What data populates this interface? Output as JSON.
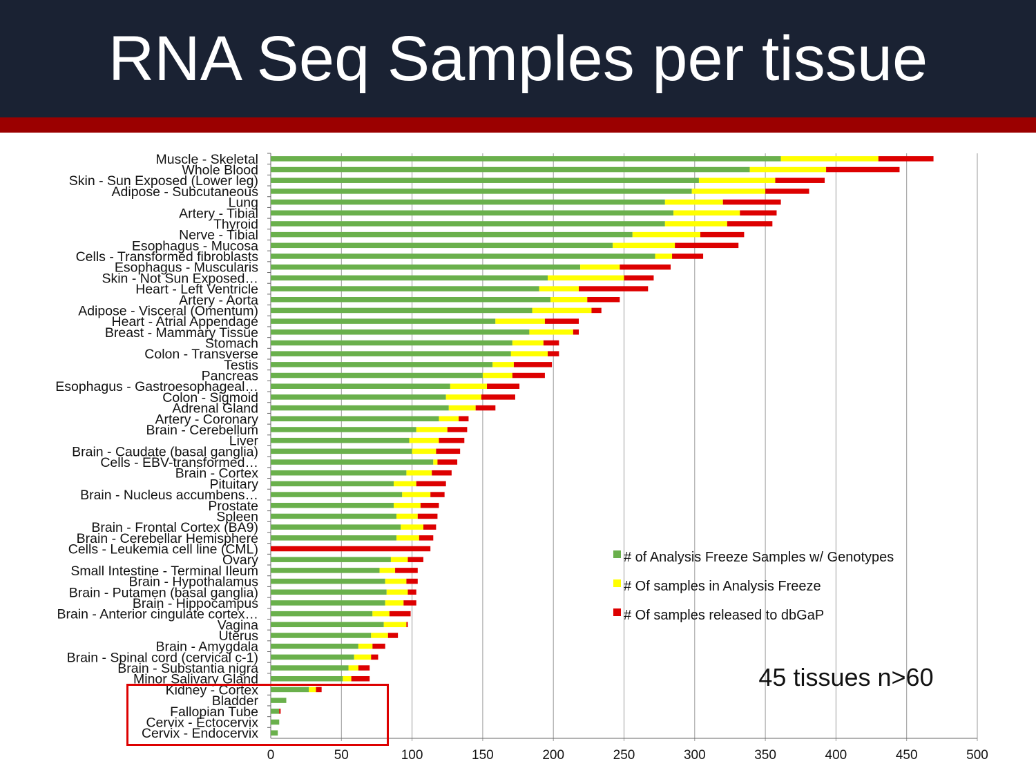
{
  "slide": {
    "title": "RNA Seq Samples per tissue",
    "note": "45 tissues n>60"
  },
  "colors": {
    "header_bg": "#1a2233",
    "stripe": "#9b0000",
    "green": "#6ab04c",
    "yellow": "#ffff00",
    "red": "#dd0000",
    "grid": "#999999"
  },
  "chart_data": {
    "type": "bar",
    "orientation": "horizontal",
    "stacked": true,
    "xlim": [
      0,
      500
    ],
    "xticks": [
      0,
      50,
      100,
      150,
      200,
      250,
      300,
      350,
      400,
      450,
      500
    ],
    "grid": true,
    "legend_placement": "right",
    "categories": [
      "Muscle - Skeletal",
      "Whole Blood",
      "Skin - Sun Exposed (Lower leg)",
      "Adipose - Subcutaneous",
      "Lung",
      "Artery - Tibial",
      "Thyroid",
      "Nerve - Tibial",
      "Esophagus - Mucosa",
      "Cells - Transformed fibroblasts",
      "Esophagus - Muscularis",
      "Skin - Not Sun Exposed…",
      "Heart - Left Ventricle",
      "Artery - Aorta",
      "Adipose - Visceral (Omentum)",
      "Heart - Atrial Appendage",
      "Breast - Mammary Tissue",
      "Stomach",
      "Colon - Transverse",
      "Testis",
      "Pancreas",
      "Esophagus - Gastroesophageal…",
      "Colon - Sigmoid",
      "Adrenal Gland",
      "Artery - Coronary",
      "Brain - Cerebellum",
      "Liver",
      "Brain - Caudate (basal ganglia)",
      "Cells - EBV-transformed…",
      "Brain - Cortex",
      "Pituitary",
      "Brain - Nucleus accumbens…",
      "Prostate",
      "Spleen",
      "Brain - Frontal Cortex (BA9)",
      "Brain - Cerebellar Hemisphere",
      "Cells - Leukemia cell line (CML)",
      "Ovary",
      "Small Intestine - Terminal Ileum",
      "Brain - Hypothalamus",
      "Brain - Putamen (basal ganglia)",
      "Brain - Hippocampus",
      "Brain - Anterior cingulate cortex…",
      "Vagina",
      "Uterus",
      "Brain - Amygdala",
      "Brain - Spinal cord (cervical c-1)",
      "Brain - Substantia nigra",
      "Minor Salivary Gland",
      "Kidney - Cortex",
      "Bladder",
      "Fallopian Tube",
      "Cervix - Ectocervix",
      "Cervix - Endocervix"
    ],
    "series": [
      {
        "name": "# of Analysis Freeze Samples w/ Genotypes",
        "color": "#6ab04c",
        "values": [
          361,
          339,
          303,
          298,
          279,
          285,
          279,
          256,
          242,
          272,
          219,
          196,
          190,
          198,
          185,
          159,
          183,
          171,
          170,
          157,
          150,
          127,
          124,
          126,
          119,
          103,
          98,
          100,
          115,
          96,
          87,
          93,
          87,
          89,
          92,
          89,
          0,
          85,
          77,
          81,
          82,
          81,
          72,
          80,
          71,
          62,
          59,
          55,
          51,
          27,
          11,
          6,
          6,
          5
        ]
      },
      {
        "name": "# Of samples in Analysis Freeze",
        "color": "#ffff00",
        "values": [
          69,
          54,
          54,
          52,
          41,
          47,
          44,
          48,
          44,
          12,
          28,
          54,
          28,
          26,
          42,
          35,
          31,
          22,
          26,
          15,
          21,
          26,
          25,
          19,
          14,
          22,
          21,
          17,
          3,
          18,
          16,
          20,
          19,
          15,
          16,
          16,
          0,
          12,
          11,
          15,
          15,
          13,
          12,
          16,
          12,
          10,
          12,
          7,
          6,
          5,
          0,
          0,
          0,
          0
        ]
      },
      {
        "name": "# Of samples released to dbGaP",
        "color": "#dd0000",
        "values": [
          39,
          52,
          35,
          31,
          41,
          26,
          32,
          31,
          45,
          22,
          36,
          21,
          49,
          23,
          7,
          24,
          4,
          11,
          8,
          27,
          23,
          23,
          24,
          14,
          7,
          14,
          18,
          17,
          14,
          14,
          21,
          10,
          13,
          14,
          9,
          10,
          113,
          11,
          16,
          8,
          6,
          9,
          15,
          1,
          7,
          9,
          5,
          8,
          13,
          4,
          0,
          1,
          0,
          0
        ]
      }
    ]
  }
}
